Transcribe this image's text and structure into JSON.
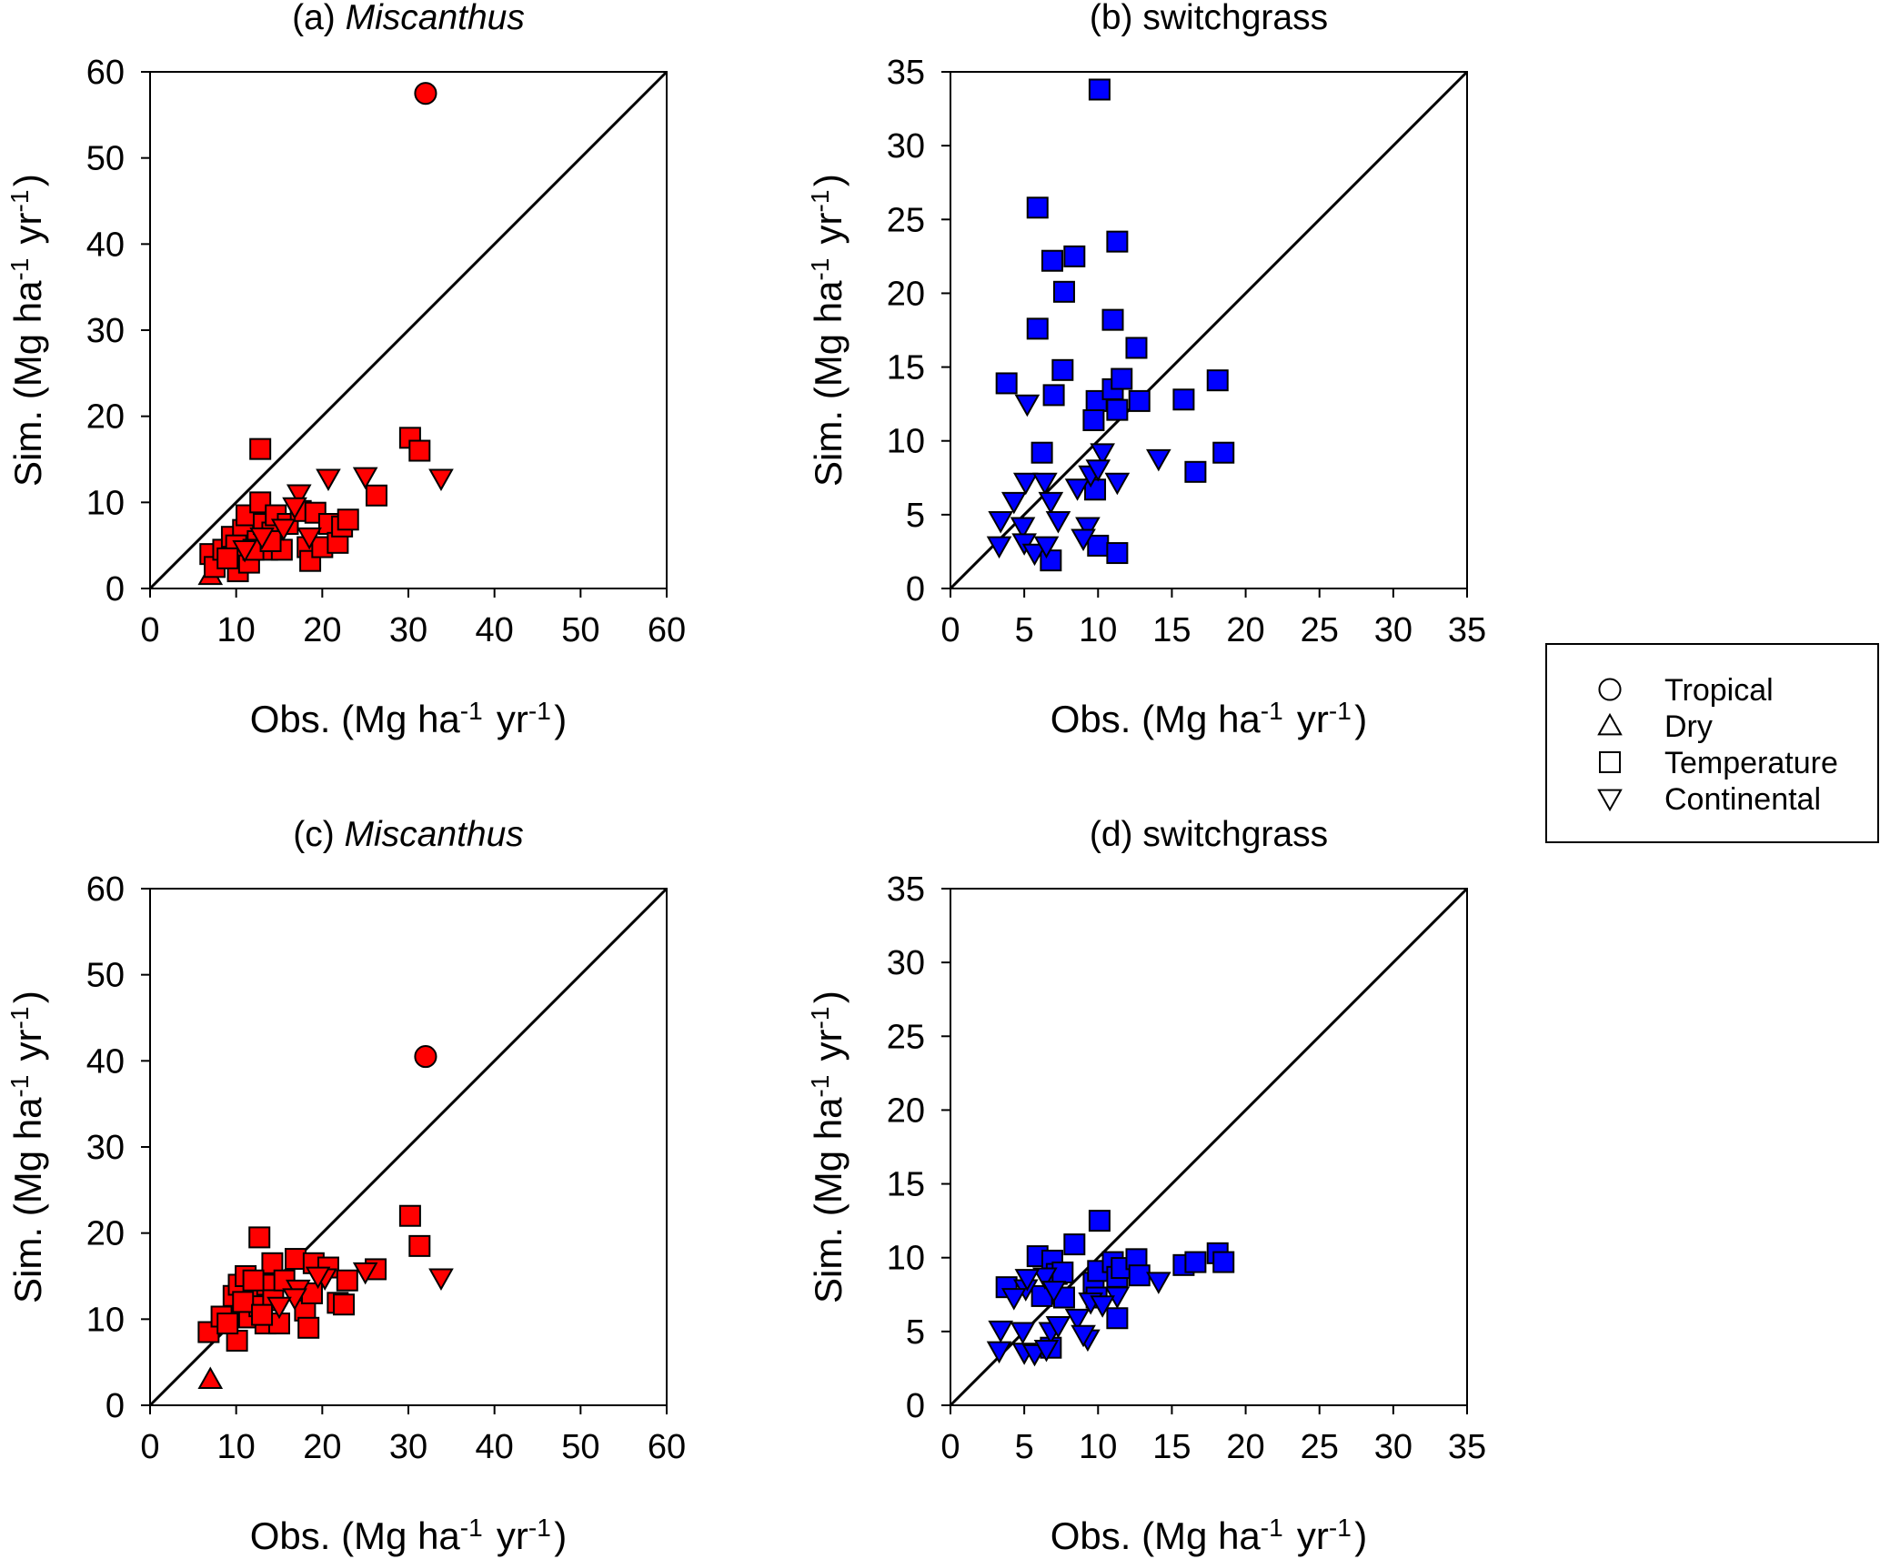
{
  "figure": {
    "colors": {
      "miscanthus": "#ff0000",
      "switchgrass": "#0000ff",
      "axis": "#000000"
    },
    "legend": {
      "items": [
        {
          "label": "Tropical",
          "symbol": "circle"
        },
        {
          "label": "Dry",
          "symbol": "triangle-up"
        },
        {
          "label": "Temperature",
          "symbol": "square"
        },
        {
          "label": "Continental",
          "symbol": "triangle-down"
        }
      ]
    }
  },
  "chart_data": [
    {
      "type": "scatter",
      "title_prefix": "(a) ",
      "title_main": "Miscanthus",
      "title_italic": true,
      "xlabel": "Obs. (Mg ha-1 yr-1)",
      "ylabel": "Sim. (Mg ha-1 yr-1)",
      "xlim": [
        0,
        60
      ],
      "ylim": [
        0,
        60
      ],
      "xticks": [
        "0",
        "10",
        "20",
        "30",
        "40",
        "50",
        "60"
      ],
      "yticks": [
        "0",
        "10",
        "20",
        "30",
        "40",
        "50",
        "60"
      ],
      "color": "#ff0000",
      "one_to_one_line": true,
      "points": [
        {
          "x": 32,
          "y": 57.5,
          "s": "circle"
        },
        {
          "x": 7,
          "y": 1.5,
          "s": "triangle-up"
        },
        {
          "x": 12.8,
          "y": 16.2,
          "s": "square"
        },
        {
          "x": 30.2,
          "y": 17.5,
          "s": "square"
        },
        {
          "x": 31.3,
          "y": 16.0,
          "s": "square"
        },
        {
          "x": 26.3,
          "y": 10.8,
          "s": "square"
        },
        {
          "x": 7,
          "y": 4.0,
          "s": "square"
        },
        {
          "x": 7.5,
          "y": 2.5,
          "s": "square"
        },
        {
          "x": 8.5,
          "y": 4.5,
          "s": "square"
        },
        {
          "x": 9.5,
          "y": 6.0,
          "s": "square"
        },
        {
          "x": 10.2,
          "y": 2.0,
          "s": "square"
        },
        {
          "x": 10.8,
          "y": 6.8,
          "s": "square"
        },
        {
          "x": 11.2,
          "y": 8.5,
          "s": "square"
        },
        {
          "x": 11.5,
          "y": 3.0,
          "s": "square"
        },
        {
          "x": 12.5,
          "y": 5.5,
          "s": "square"
        },
        {
          "x": 12.8,
          "y": 10.0,
          "s": "square"
        },
        {
          "x": 13.2,
          "y": 7.5,
          "s": "square"
        },
        {
          "x": 13.6,
          "y": 4.5,
          "s": "square"
        },
        {
          "x": 14.2,
          "y": 6.5,
          "s": "square"
        },
        {
          "x": 14.6,
          "y": 8.5,
          "s": "square"
        },
        {
          "x": 15.3,
          "y": 4.5,
          "s": "square"
        },
        {
          "x": 16.0,
          "y": 7.5,
          "s": "square"
        },
        {
          "x": 17.5,
          "y": 9.0,
          "s": "square"
        },
        {
          "x": 18.3,
          "y": 4.8,
          "s": "square"
        },
        {
          "x": 18.6,
          "y": 3.2,
          "s": "square"
        },
        {
          "x": 19.2,
          "y": 8.8,
          "s": "square"
        },
        {
          "x": 20.0,
          "y": 4.8,
          "s": "square"
        },
        {
          "x": 20.8,
          "y": 7.5,
          "s": "square"
        },
        {
          "x": 21.8,
          "y": 5.3,
          "s": "square"
        },
        {
          "x": 22.3,
          "y": 7.2,
          "s": "square"
        },
        {
          "x": 23.0,
          "y": 8.0,
          "s": "square"
        },
        {
          "x": 10.0,
          "y": 5.0,
          "s": "square"
        },
        {
          "x": 12.0,
          "y": 4.5,
          "s": "square"
        },
        {
          "x": 14.0,
          "y": 5.5,
          "s": "square"
        },
        {
          "x": 9.0,
          "y": 3.5,
          "s": "square"
        },
        {
          "x": 17.3,
          "y": 11.0,
          "s": "triangle-down"
        },
        {
          "x": 16.8,
          "y": 9.5,
          "s": "triangle-down"
        },
        {
          "x": 20.7,
          "y": 12.8,
          "s": "triangle-down"
        },
        {
          "x": 25.0,
          "y": 13.0,
          "s": "triangle-down"
        },
        {
          "x": 33.8,
          "y": 12.8,
          "s": "triangle-down"
        },
        {
          "x": 15.5,
          "y": 7.0,
          "s": "triangle-down"
        },
        {
          "x": 13.0,
          "y": 6.0,
          "s": "triangle-down"
        },
        {
          "x": 11.0,
          "y": 4.5,
          "s": "triangle-down"
        },
        {
          "x": 18.5,
          "y": 6.0,
          "s": "triangle-down"
        }
      ]
    },
    {
      "type": "scatter",
      "title_prefix": "(b) ",
      "title_main": "switchgrass",
      "title_italic": false,
      "xlabel": "Obs. (Mg ha-1 yr-1)",
      "ylabel": "Sim. (Mg ha-1 yr-1)",
      "xlim": [
        0,
        35
      ],
      "ylim": [
        0,
        35
      ],
      "xticks": [
        "0",
        "5",
        "10",
        "15",
        "20",
        "25",
        "30",
        "35"
      ],
      "yticks": [
        "0",
        "5",
        "10",
        "15",
        "20",
        "25",
        "30",
        "35"
      ],
      "color": "#0000ff",
      "one_to_one_line": true,
      "points": [
        {
          "x": 10.1,
          "y": 33.8,
          "s": "square"
        },
        {
          "x": 5.9,
          "y": 25.8,
          "s": "square"
        },
        {
          "x": 11.3,
          "y": 23.5,
          "s": "square"
        },
        {
          "x": 6.9,
          "y": 22.2,
          "s": "square"
        },
        {
          "x": 8.4,
          "y": 22.5,
          "s": "square"
        },
        {
          "x": 7.7,
          "y": 20.1,
          "s": "square"
        },
        {
          "x": 5.9,
          "y": 17.6,
          "s": "square"
        },
        {
          "x": 11.0,
          "y": 18.2,
          "s": "square"
        },
        {
          "x": 12.6,
          "y": 16.3,
          "s": "square"
        },
        {
          "x": 7.6,
          "y": 14.8,
          "s": "square"
        },
        {
          "x": 3.8,
          "y": 13.9,
          "s": "square"
        },
        {
          "x": 7.0,
          "y": 13.1,
          "s": "square"
        },
        {
          "x": 9.9,
          "y": 12.7,
          "s": "square"
        },
        {
          "x": 11.0,
          "y": 13.5,
          "s": "square"
        },
        {
          "x": 11.6,
          "y": 14.2,
          "s": "square"
        },
        {
          "x": 11.3,
          "y": 12.1,
          "s": "square"
        },
        {
          "x": 12.8,
          "y": 12.7,
          "s": "square"
        },
        {
          "x": 9.7,
          "y": 11.4,
          "s": "square"
        },
        {
          "x": 15.8,
          "y": 12.8,
          "s": "square"
        },
        {
          "x": 18.1,
          "y": 14.1,
          "s": "square"
        },
        {
          "x": 18.5,
          "y": 9.2,
          "s": "square"
        },
        {
          "x": 16.6,
          "y": 7.9,
          "s": "square"
        },
        {
          "x": 6.2,
          "y": 9.2,
          "s": "square"
        },
        {
          "x": 9.8,
          "y": 6.7,
          "s": "square"
        },
        {
          "x": 10.0,
          "y": 2.9,
          "s": "square"
        },
        {
          "x": 11.3,
          "y": 2.4,
          "s": "square"
        },
        {
          "x": 6.8,
          "y": 1.9,
          "s": "square"
        },
        {
          "x": 5.2,
          "y": 12.5,
          "s": "triangle-down"
        },
        {
          "x": 14.1,
          "y": 8.8,
          "s": "triangle-down"
        },
        {
          "x": 11.3,
          "y": 7.2,
          "s": "triangle-down"
        },
        {
          "x": 5.1,
          "y": 7.2,
          "s": "triangle-down"
        },
        {
          "x": 6.4,
          "y": 7.2,
          "s": "triangle-down"
        },
        {
          "x": 8.6,
          "y": 6.8,
          "s": "triangle-down"
        },
        {
          "x": 9.5,
          "y": 7.7,
          "s": "triangle-down"
        },
        {
          "x": 10.3,
          "y": 9.2,
          "s": "triangle-down"
        },
        {
          "x": 10.0,
          "y": 8.1,
          "s": "triangle-down"
        },
        {
          "x": 4.3,
          "y": 5.9,
          "s": "triangle-down"
        },
        {
          "x": 6.8,
          "y": 5.9,
          "s": "triangle-down"
        },
        {
          "x": 3.4,
          "y": 4.6,
          "s": "triangle-down"
        },
        {
          "x": 4.9,
          "y": 4.2,
          "s": "triangle-down"
        },
        {
          "x": 7.3,
          "y": 4.6,
          "s": "triangle-down"
        },
        {
          "x": 9.3,
          "y": 4.2,
          "s": "triangle-down"
        },
        {
          "x": 3.3,
          "y": 2.9,
          "s": "triangle-down"
        },
        {
          "x": 5.0,
          "y": 3.1,
          "s": "triangle-down"
        },
        {
          "x": 5.7,
          "y": 2.4,
          "s": "triangle-down"
        },
        {
          "x": 6.5,
          "y": 2.9,
          "s": "triangle-down"
        },
        {
          "x": 9.0,
          "y": 3.4,
          "s": "triangle-down"
        }
      ]
    },
    {
      "type": "scatter",
      "title_prefix": "(c) ",
      "title_main": "Miscanthus",
      "title_italic": true,
      "xlabel": "Obs. (Mg ha-1 yr-1)",
      "ylabel": "Sim. (Mg ha-1 yr-1)",
      "xlim": [
        0,
        60
      ],
      "ylim": [
        0,
        60
      ],
      "xticks": [
        "0",
        "10",
        "20",
        "30",
        "40",
        "50",
        "60"
      ],
      "yticks": [
        "0",
        "10",
        "20",
        "30",
        "40",
        "50",
        "60"
      ],
      "color": "#ff0000",
      "one_to_one_line": true,
      "points": [
        {
          "x": 32,
          "y": 40.5,
          "s": "circle"
        },
        {
          "x": 7,
          "y": 3.0,
          "s": "triangle-up"
        },
        {
          "x": 12.7,
          "y": 19.5,
          "s": "square"
        },
        {
          "x": 30.2,
          "y": 22.0,
          "s": "square"
        },
        {
          "x": 31.3,
          "y": 18.5,
          "s": "square"
        },
        {
          "x": 6.8,
          "y": 8.5,
          "s": "square"
        },
        {
          "x": 8.3,
          "y": 10.3,
          "s": "square"
        },
        {
          "x": 9.7,
          "y": 12.7,
          "s": "square"
        },
        {
          "x": 10.1,
          "y": 7.5,
          "s": "square"
        },
        {
          "x": 10.3,
          "y": 14.0,
          "s": "square"
        },
        {
          "x": 11.1,
          "y": 15.0,
          "s": "square"
        },
        {
          "x": 11.5,
          "y": 10.2,
          "s": "square"
        },
        {
          "x": 12.2,
          "y": 13.1,
          "s": "square"
        },
        {
          "x": 12.7,
          "y": 11.5,
          "s": "square"
        },
        {
          "x": 13.4,
          "y": 9.5,
          "s": "square"
        },
        {
          "x": 13.6,
          "y": 14.0,
          "s": "square"
        },
        {
          "x": 14.2,
          "y": 16.5,
          "s": "square"
        },
        {
          "x": 14.3,
          "y": 12.2,
          "s": "square"
        },
        {
          "x": 15.0,
          "y": 9.5,
          "s": "square"
        },
        {
          "x": 15.6,
          "y": 14.5,
          "s": "square"
        },
        {
          "x": 16.9,
          "y": 17.0,
          "s": "square"
        },
        {
          "x": 18.0,
          "y": 11.0,
          "s": "square"
        },
        {
          "x": 18.4,
          "y": 9.0,
          "s": "square"
        },
        {
          "x": 18.8,
          "y": 13.0,
          "s": "square"
        },
        {
          "x": 19.0,
          "y": 16.5,
          "s": "square"
        },
        {
          "x": 20.7,
          "y": 16.0,
          "s": "square"
        },
        {
          "x": 21.8,
          "y": 11.9,
          "s": "square"
        },
        {
          "x": 22.5,
          "y": 11.7,
          "s": "square"
        },
        {
          "x": 22.9,
          "y": 14.5,
          "s": "square"
        },
        {
          "x": 26.2,
          "y": 15.8,
          "s": "square"
        },
        {
          "x": 10.8,
          "y": 12.0,
          "s": "square"
        },
        {
          "x": 12.0,
          "y": 14.5,
          "s": "square"
        },
        {
          "x": 13.0,
          "y": 10.5,
          "s": "square"
        },
        {
          "x": 9.0,
          "y": 9.5,
          "s": "square"
        },
        {
          "x": 17.2,
          "y": 13.5,
          "s": "triangle-down"
        },
        {
          "x": 16.8,
          "y": 12.5,
          "s": "triangle-down"
        },
        {
          "x": 20.3,
          "y": 14.8,
          "s": "triangle-down"
        },
        {
          "x": 25.0,
          "y": 15.5,
          "s": "triangle-down"
        },
        {
          "x": 33.8,
          "y": 14.8,
          "s": "triangle-down"
        },
        {
          "x": 15.0,
          "y": 11.5,
          "s": "triangle-down"
        },
        {
          "x": 19.5,
          "y": 15.0,
          "s": "triangle-down"
        }
      ]
    },
    {
      "type": "scatter",
      "title_prefix": "(d) ",
      "title_main": "switchgrass",
      "title_italic": false,
      "xlabel": "Obs. (Mg ha-1 yr-1)",
      "ylabel": "Sim. (Mg ha-1 yr-1)",
      "xlim": [
        0,
        35
      ],
      "ylim": [
        0,
        35
      ],
      "xticks": [
        "0",
        "5",
        "10",
        "15",
        "20",
        "25",
        "30",
        "35"
      ],
      "yticks": [
        "0",
        "5",
        "10",
        "15",
        "20",
        "25",
        "30",
        "35"
      ],
      "color": "#0000ff",
      "one_to_one_line": true,
      "points": [
        {
          "x": 10.1,
          "y": 12.5,
          "s": "square"
        },
        {
          "x": 3.8,
          "y": 8.0,
          "s": "square"
        },
        {
          "x": 5.9,
          "y": 10.1,
          "s": "square"
        },
        {
          "x": 6.2,
          "y": 7.4,
          "s": "square"
        },
        {
          "x": 6.9,
          "y": 9.8,
          "s": "square"
        },
        {
          "x": 7.2,
          "y": 8.9,
          "s": "square"
        },
        {
          "x": 7.6,
          "y": 9.0,
          "s": "square"
        },
        {
          "x": 7.7,
          "y": 7.3,
          "s": "square"
        },
        {
          "x": 8.4,
          "y": 10.9,
          "s": "square"
        },
        {
          "x": 9.7,
          "y": 8.3,
          "s": "square"
        },
        {
          "x": 9.9,
          "y": 7.3,
          "s": "square"
        },
        {
          "x": 10.0,
          "y": 9.1,
          "s": "square"
        },
        {
          "x": 11.0,
          "y": 9.7,
          "s": "square"
        },
        {
          "x": 11.3,
          "y": 8.7,
          "s": "square"
        },
        {
          "x": 11.3,
          "y": 5.9,
          "s": "square"
        },
        {
          "x": 11.6,
          "y": 9.3,
          "s": "square"
        },
        {
          "x": 12.6,
          "y": 9.9,
          "s": "square"
        },
        {
          "x": 12.8,
          "y": 8.8,
          "s": "square"
        },
        {
          "x": 15.8,
          "y": 9.5,
          "s": "square"
        },
        {
          "x": 16.6,
          "y": 9.7,
          "s": "square"
        },
        {
          "x": 18.1,
          "y": 10.3,
          "s": "square"
        },
        {
          "x": 18.5,
          "y": 9.7,
          "s": "square"
        },
        {
          "x": 6.8,
          "y": 3.9,
          "s": "square"
        },
        {
          "x": 14.1,
          "y": 8.4,
          "s": "triangle-down"
        },
        {
          "x": 11.3,
          "y": 7.4,
          "s": "triangle-down"
        },
        {
          "x": 5.1,
          "y": 7.9,
          "s": "triangle-down"
        },
        {
          "x": 6.4,
          "y": 8.7,
          "s": "triangle-down"
        },
        {
          "x": 8.6,
          "y": 5.9,
          "s": "triangle-down"
        },
        {
          "x": 9.5,
          "y": 7.0,
          "s": "triangle-down"
        },
        {
          "x": 10.3,
          "y": 6.8,
          "s": "triangle-down"
        },
        {
          "x": 4.3,
          "y": 7.3,
          "s": "triangle-down"
        },
        {
          "x": 6.8,
          "y": 5.0,
          "s": "triangle-down"
        },
        {
          "x": 3.4,
          "y": 5.1,
          "s": "triangle-down"
        },
        {
          "x": 4.9,
          "y": 5.0,
          "s": "triangle-down"
        },
        {
          "x": 7.3,
          "y": 5.4,
          "s": "triangle-down"
        },
        {
          "x": 9.3,
          "y": 4.5,
          "s": "triangle-down"
        },
        {
          "x": 3.3,
          "y": 3.7,
          "s": "triangle-down"
        },
        {
          "x": 5.0,
          "y": 3.6,
          "s": "triangle-down"
        },
        {
          "x": 5.7,
          "y": 3.5,
          "s": "triangle-down"
        },
        {
          "x": 6.5,
          "y": 3.8,
          "s": "triangle-down"
        },
        {
          "x": 9.0,
          "y": 4.8,
          "s": "triangle-down"
        },
        {
          "x": 5.2,
          "y": 8.6,
          "s": "triangle-down"
        },
        {
          "x": 7.0,
          "y": 7.8,
          "s": "triangle-down"
        }
      ]
    }
  ]
}
